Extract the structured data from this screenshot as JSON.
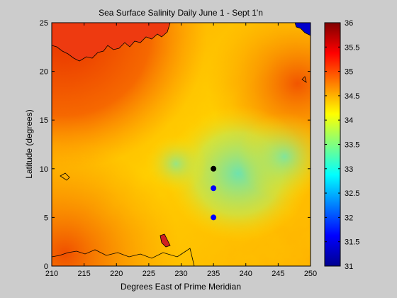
{
  "chart_data": {
    "type": "heatmap",
    "title": "Sea Surface Salinity Daily June 1 - Sept 1'n",
    "xlabel": "Degrees East of Prime Meridian",
    "ylabel": "Latitude (degrees)",
    "xlim": [
      210,
      250
    ],
    "ylim": [
      0,
      25
    ],
    "x_ticks": [
      210,
      215,
      220,
      225,
      230,
      235,
      240,
      245,
      250
    ],
    "y_ticks": [
      0,
      5,
      10,
      15,
      20,
      25
    ],
    "colorbar": {
      "range": [
        31,
        36
      ],
      "ticks": [
        "31",
        "31.5",
        "32",
        "32.5",
        "33",
        "33.5",
        "34",
        "34.5",
        "35",
        "35.5",
        "36"
      ],
      "colormap": "jet"
    },
    "markers": [
      {
        "x": 235,
        "y": 10,
        "color": "#000000"
      },
      {
        "x": 235,
        "y": 8,
        "color": "#0000ff"
      },
      {
        "x": 235,
        "y": 5,
        "color": "#0000ff"
      }
    ],
    "field_description_colors": {
      "high_salinity": "#e83a00",
      "mid_salinity": "#ffd400",
      "low_salinity": "#6fe0a0",
      "land_outline": "#000000"
    }
  }
}
